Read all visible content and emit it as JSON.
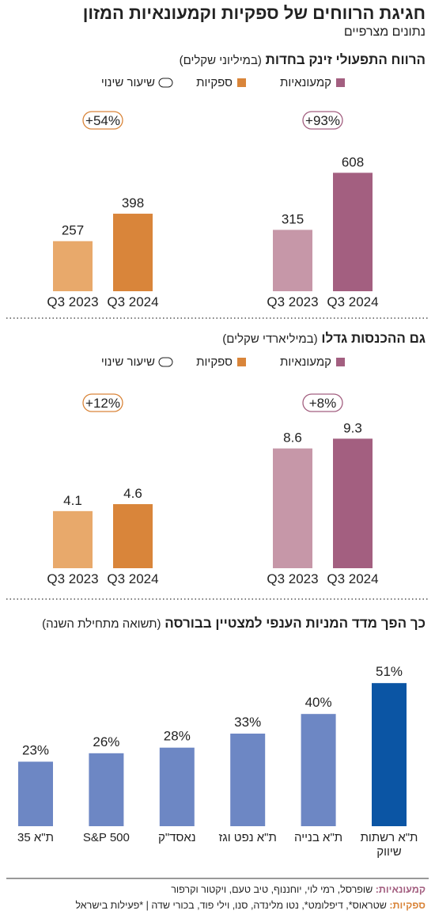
{
  "header": {
    "title": "חגיגת הרווחים של ספקיות וקמעונאיות המזון",
    "subtitle": "נתונים מצרפיים"
  },
  "chart_data": [
    {
      "type": "grouped-bar",
      "title": "הרווח התפעולי זינק בחדות",
      "unit": "(במיליוני שקלים)",
      "categories": [
        "Q3 2023",
        "Q3 2024"
      ],
      "change_legend": "שיעור שינוי",
      "ylim": [
        0,
        650
      ],
      "series": [
        {
          "name": "קמעונאיות",
          "color": "#a35f80",
          "colors": [
            "#c697a8",
            "#a35f80"
          ],
          "values": [
            315,
            608
          ],
          "change": "+93%"
        },
        {
          "name": "ספקיות",
          "color": "#d9853a",
          "colors": [
            "#e8a96b",
            "#d9853a"
          ],
          "values": [
            257,
            398
          ],
          "change": "+54%"
        }
      ]
    },
    {
      "type": "grouped-bar",
      "title": "גם ההכנסות גדלו",
      "unit": "(במיליארדי שקלים)",
      "categories": [
        "Q3 2023",
        "Q3 2024"
      ],
      "change_legend": "שיעור שינוי",
      "ylim": [
        0,
        10
      ],
      "series": [
        {
          "name": "קמעונאיות",
          "color": "#a35f80",
          "colors": [
            "#c697a8",
            "#a35f80"
          ],
          "values": [
            8.6,
            9.3
          ],
          "change": "+8%"
        },
        {
          "name": "ספקיות",
          "color": "#d9853a",
          "colors": [
            "#e8a96b",
            "#d9853a"
          ],
          "values": [
            4.1,
            4.6
          ],
          "change": "+12%"
        }
      ]
    },
    {
      "type": "bar",
      "title": "כך הפך מדד המניות הענפי למצטיין בבורסה",
      "unit": "(תשואה מתחילת השנה)",
      "categories": [
        "ת\"א רשתות שיווק",
        "ת\"א בנייה",
        "ת\"א נפט וגז",
        "נאסד\"ק",
        "S&P 500",
        "ת\"א 35"
      ],
      "values": [
        51,
        40,
        33,
        28,
        26,
        23
      ],
      "value_labels": [
        "51%",
        "40%",
        "33%",
        "28%",
        "26%",
        "23%"
      ],
      "colors": [
        "#0b55a4",
        "#6d87c4",
        "#6d87c4",
        "#6d87c4",
        "#6d87c4",
        "#6d87c4"
      ],
      "ylim": [
        0,
        55
      ]
    }
  ],
  "footer": {
    "notes": [
      {
        "label": "קמעונאיות:",
        "color": "#a35f80",
        "text": "שופרסל, רמי לוי, יוחננוף, טיב טעם, ויקטור וקרפור"
      },
      {
        "label": "ספקיות:",
        "color": "#d9853a",
        "text": "שטראוס*, דיפלומט*, נטו מלינדה, סנו, וילי פוד, בכורי שדה | *פעילות בישראל"
      }
    ]
  }
}
